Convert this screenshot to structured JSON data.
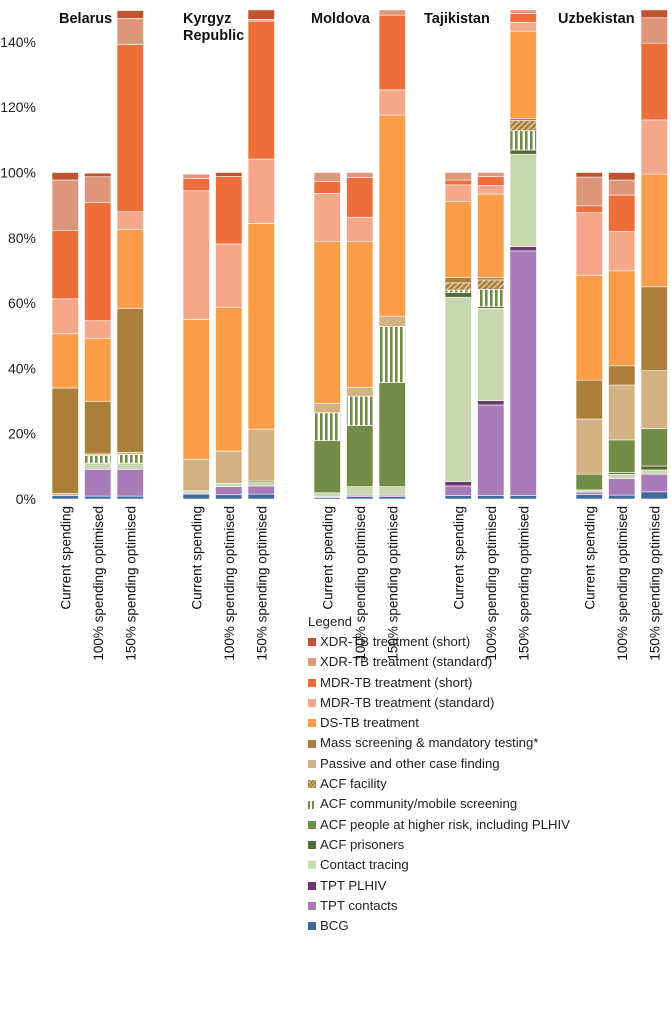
{
  "chart_data": {
    "type": "bar",
    "stacked": true,
    "title": "",
    "xlabel": "",
    "ylabel": "",
    "ylim": [
      0,
      150
    ],
    "yticks": [
      "0%",
      "20%",
      "40%",
      "60%",
      "80%",
      "100%",
      "120%",
      "140%"
    ],
    "ytick_values": [
      0,
      20,
      40,
      60,
      80,
      100,
      120,
      140
    ],
    "groups": [
      {
        "name": "Belarus",
        "lines": [
          "Belarus"
        ]
      },
      {
        "name": "Kyrgyz Republic",
        "lines": [
          "Kyrgyz",
          "Republic"
        ]
      },
      {
        "name": "Moldova",
        "lines": [
          "Moldova"
        ]
      },
      {
        "name": "Tajikistan",
        "lines": [
          "Tajikistan"
        ]
      },
      {
        "name": "Uzbekistan",
        "lines": [
          "Uzbekistan"
        ]
      }
    ],
    "scenarios": [
      "Current spending",
      "100% spending optimised",
      "150% spending optimised"
    ],
    "legend_title": "Legend",
    "legend_position": "bottom-right",
    "series": [
      {
        "name": "BCG",
        "color": "#3F6A9E",
        "pattern": "solid",
        "values": [
          1.0,
          0.9,
          0.9,
          1.5,
          1.3,
          1.5,
          0.4,
          0.7,
          0.7,
          1.1,
          1.1,
          1.1,
          1.4,
          1.2,
          2.2
        ]
      },
      {
        "name": "TPT contacts",
        "color": "#A77AB8",
        "pattern": "solid",
        "values": [
          0,
          8.2,
          8.2,
          0.3,
          2.5,
          2.5,
          0.3,
          0.5,
          0.5,
          2.9,
          27.7,
          74.9,
          0.7,
          5.1,
          5.4
        ]
      },
      {
        "name": "TPT PLHIV",
        "color": "#683A6E",
        "pattern": "solid",
        "values": [
          0,
          0,
          0,
          0,
          0,
          0,
          0,
          0,
          0,
          1.3,
          1.3,
          1.3,
          0,
          0,
          0
        ]
      },
      {
        "name": "Contact tracing",
        "color": "#C9D7B0",
        "pattern": "solid",
        "values": [
          0,
          1.9,
          1.9,
          0.7,
          1.0,
          1.0,
          1.2,
          2.6,
          2.6,
          56.5,
          28.3,
          28.3,
          0.7,
          1.3,
          1.3
        ]
      },
      {
        "name": "ACF prisoners",
        "color": "#566A36",
        "pattern": "solid",
        "values": [
          0,
          0,
          0,
          0,
          0,
          0,
          0,
          0,
          0,
          1.4,
          0.5,
          1.3,
          0,
          0.5,
          1.2
        ]
      },
      {
        "name": "ACF people at higher risk, including PLHIV",
        "color": "#728C47",
        "pattern": "solid",
        "values": [
          0,
          0,
          0,
          0,
          0,
          0.5,
          16.0,
          18.7,
          31.9,
          0,
          0,
          0,
          4.8,
          10.0,
          11.5
        ]
      },
      {
        "name": "ACF community/mobile screening",
        "color": "#728C47",
        "pattern": "vstripe",
        "values": [
          0,
          2.3,
          2.6,
          0,
          0,
          0,
          8.5,
          9.0,
          17.1,
          0.8,
          5.3,
          5.9,
          0,
          0,
          0
        ]
      },
      {
        "name": "ACF facility",
        "color": "#AA7F3C",
        "pattern": "hatch",
        "values": [
          0,
          0,
          0,
          0,
          0,
          0,
          0,
          0,
          0,
          2.2,
          2.9,
          3.1,
          0,
          0,
          0
        ]
      },
      {
        "name": "Passive and other case finding",
        "color": "#D4B183",
        "pattern": "solid",
        "values": [
          0.7,
          0.5,
          0.7,
          9.7,
          9.9,
          15.9,
          2.9,
          2.7,
          3.2,
          0,
          0,
          0,
          16.9,
          16.8,
          17.7
        ]
      },
      {
        "name": "Mass screening & mandatory testing*",
        "color": "#AA7F3C",
        "pattern": "solid",
        "values": [
          32.3,
          16.0,
          44.0,
          0,
          0,
          0,
          0,
          0,
          0,
          1.6,
          0.7,
          0.7,
          11.9,
          5.9,
          25.7
        ]
      },
      {
        "name": "DS-TB treatment",
        "color": "#F99D48",
        "pattern": "solid",
        "values": [
          16.6,
          19.4,
          24.2,
          42.8,
          43.9,
          63.0,
          49.5,
          44.6,
          61.6,
          23.3,
          25.6,
          26.7,
          32.0,
          29.1,
          34.5
        ]
      },
      {
        "name": "MDR-TB treatment (standard)",
        "color": "#F4A78B",
        "pattern": "solid",
        "values": [
          10.7,
          5.4,
          5.5,
          39.4,
          19.5,
          19.7,
          14.8,
          7.5,
          7.7,
          5.1,
          2.6,
          2.7,
          19.3,
          12.0,
          16.6
        ]
      },
      {
        "name": "MDR-TB treatment (short)",
        "color": "#EE6E3B",
        "pattern": "solid",
        "values": [
          20.9,
          36.2,
          51.2,
          3.7,
          20.7,
          42.3,
          3.6,
          12.2,
          22.9,
          1.5,
          2.8,
          2.7,
          2.1,
          11.2,
          23.5
        ]
      },
      {
        "name": "XDR-TB treatment (standard)",
        "color": "#DE967A",
        "pattern": "solid",
        "values": [
          15.5,
          7.9,
          8.0,
          1.4,
          0,
          0.5,
          2.8,
          1.5,
          1.6,
          2.3,
          1.2,
          1.1,
          8.8,
          4.6,
          7.8
        ]
      },
      {
        "name": "XDR-TB treatment (short)",
        "color": "#C0522D",
        "pattern": "solid",
        "values": [
          2.3,
          1.1,
          2.4,
          0,
          1.2,
          2.9,
          0,
          0,
          0,
          0,
          0,
          0,
          1.4,
          2.3,
          2.4
        ]
      }
    ]
  }
}
